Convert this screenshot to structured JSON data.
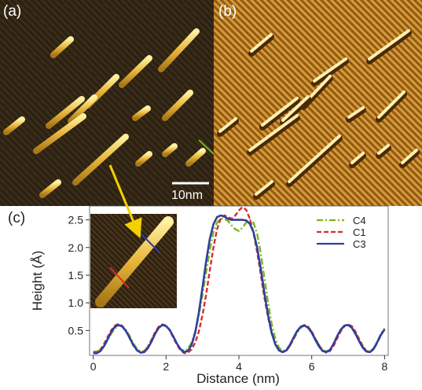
{
  "panels": {
    "a": {
      "label": "(a)",
      "scale_bar_label": "10nm"
    },
    "b": {
      "label": "(b)"
    },
    "c": {
      "label": "(c)"
    }
  },
  "colors": {
    "panel_a_bg": "#2a2012",
    "panel_a_stripe": "#3a2c18",
    "panel_a_wire": "#e8b53a",
    "panel_a_wire_glow": "#fff1a0",
    "panel_b_bg": "#b87a22",
    "panel_b_stripe_dark": "#8a5512",
    "panel_b_stripe_light": "#d9a040",
    "panel_b_wire_dark": "#4a2a08",
    "panel_b_wire_light": "#fff0b0",
    "arrow": "#f5d000",
    "c4": "#7ab51d",
    "c1": "#d62d2d",
    "c3": "#2e3fa0",
    "axis": "#333333"
  },
  "chart_data": {
    "type": "line",
    "xlabel": "Distance (nm)",
    "ylabel": "Height (Å)",
    "xlim": [
      -0.1,
      8.1
    ],
    "ylim": [
      0.05,
      2.75
    ],
    "xticks": [
      "0",
      "2",
      "4",
      "6",
      "8"
    ],
    "yticks": [
      "0.5",
      "1.0",
      "1.5",
      "2.0",
      "2.5"
    ],
    "legend_position": "top-right",
    "series": [
      {
        "name": "C4",
        "style": "dash-dot",
        "x": [
          0.0,
          0.1,
          0.2,
          0.3,
          0.4,
          0.5,
          0.6,
          0.7,
          0.8,
          0.9,
          1.0,
          1.1,
          1.2,
          1.3,
          1.4,
          1.5,
          1.6,
          1.7,
          1.8,
          1.9,
          2.0,
          2.1,
          2.2,
          2.3,
          2.4,
          2.5,
          2.6,
          2.7,
          2.8,
          2.9,
          3.0,
          3.1,
          3.2,
          3.3,
          3.4,
          3.5,
          3.6,
          3.7,
          3.8,
          3.9,
          4.0,
          4.1,
          4.2,
          4.3,
          4.4,
          4.5,
          4.6,
          4.7,
          4.8,
          4.9,
          5.0,
          5.1,
          5.2,
          5.3,
          5.4,
          5.5,
          5.6,
          5.7,
          5.8,
          5.9,
          6.0,
          6.1,
          6.2,
          6.3,
          6.4,
          6.5,
          6.6,
          6.7,
          6.8,
          6.9,
          7.0,
          7.1,
          7.2,
          7.3,
          7.4,
          7.5,
          7.6,
          7.7,
          7.8,
          7.9,
          8.0
        ],
        "y": [
          0.12,
          0.12,
          0.15,
          0.22,
          0.33,
          0.45,
          0.54,
          0.59,
          0.58,
          0.51,
          0.4,
          0.27,
          0.17,
          0.12,
          0.13,
          0.21,
          0.33,
          0.46,
          0.56,
          0.6,
          0.58,
          0.51,
          0.39,
          0.26,
          0.16,
          0.13,
          0.17,
          0.28,
          0.48,
          0.78,
          1.15,
          1.55,
          1.95,
          2.28,
          2.45,
          2.52,
          2.52,
          2.48,
          2.4,
          2.33,
          2.3,
          2.36,
          2.45,
          2.5,
          2.45,
          2.25,
          1.9,
          1.45,
          1.0,
          0.62,
          0.35,
          0.19,
          0.13,
          0.14,
          0.22,
          0.34,
          0.46,
          0.55,
          0.59,
          0.56,
          0.48,
          0.36,
          0.24,
          0.15,
          0.12,
          0.15,
          0.25,
          0.38,
          0.5,
          0.58,
          0.6,
          0.56,
          0.46,
          0.33,
          0.21,
          0.14,
          0.12,
          0.18,
          0.3,
          0.44,
          0.54
        ]
      },
      {
        "name": "C1",
        "style": "dashed",
        "x": [
          0.0,
          0.1,
          0.2,
          0.3,
          0.4,
          0.5,
          0.6,
          0.7,
          0.8,
          0.9,
          1.0,
          1.1,
          1.2,
          1.3,
          1.4,
          1.5,
          1.6,
          1.7,
          1.8,
          1.9,
          2.0,
          2.1,
          2.2,
          2.3,
          2.4,
          2.5,
          2.6,
          2.7,
          2.8,
          2.9,
          3.0,
          3.1,
          3.2,
          3.3,
          3.4,
          3.5,
          3.6,
          3.7,
          3.8,
          3.9,
          4.0,
          4.1,
          4.2,
          4.3,
          4.4,
          4.5,
          4.6,
          4.7,
          4.8,
          4.9,
          5.0,
          5.1,
          5.2,
          5.3,
          5.4,
          5.5,
          5.6,
          5.7,
          5.8,
          5.9,
          6.0,
          6.1,
          6.2,
          6.3,
          6.4,
          6.5,
          6.6,
          6.7,
          6.8,
          6.9,
          7.0,
          7.1,
          7.2,
          7.3,
          7.4,
          7.5,
          7.6,
          7.7,
          7.8,
          7.9,
          8.0
        ],
        "y": [
          0.1,
          0.11,
          0.16,
          0.26,
          0.39,
          0.51,
          0.59,
          0.62,
          0.58,
          0.49,
          0.36,
          0.23,
          0.14,
          0.1,
          0.12,
          0.2,
          0.33,
          0.47,
          0.57,
          0.61,
          0.59,
          0.5,
          0.37,
          0.24,
          0.14,
          0.09,
          0.1,
          0.16,
          0.28,
          0.48,
          0.78,
          1.15,
          1.58,
          2.0,
          2.33,
          2.52,
          2.58,
          2.55,
          2.52,
          2.58,
          2.67,
          2.73,
          2.68,
          2.52,
          2.27,
          1.92,
          1.52,
          1.1,
          0.74,
          0.45,
          0.26,
          0.15,
          0.11,
          0.13,
          0.22,
          0.35,
          0.48,
          0.57,
          0.6,
          0.57,
          0.48,
          0.35,
          0.23,
          0.14,
          0.1,
          0.13,
          0.22,
          0.36,
          0.49,
          0.58,
          0.61,
          0.58,
          0.48,
          0.35,
          0.22,
          0.13,
          0.11,
          0.16,
          0.28,
          0.42,
          0.53
        ]
      },
      {
        "name": "C3",
        "style": "solid",
        "x": [
          0.0,
          0.1,
          0.2,
          0.3,
          0.4,
          0.5,
          0.6,
          0.7,
          0.8,
          0.9,
          1.0,
          1.1,
          1.2,
          1.3,
          1.4,
          1.5,
          1.6,
          1.7,
          1.8,
          1.9,
          2.0,
          2.1,
          2.2,
          2.3,
          2.4,
          2.5,
          2.6,
          2.7,
          2.8,
          2.9,
          3.0,
          3.1,
          3.2,
          3.3,
          3.4,
          3.5,
          3.6,
          3.7,
          3.8,
          3.9,
          4.0,
          4.1,
          4.2,
          4.3,
          4.4,
          4.5,
          4.6,
          4.7,
          4.8,
          4.9,
          5.0,
          5.1,
          5.2,
          5.3,
          5.4,
          5.5,
          5.6,
          5.7,
          5.8,
          5.9,
          6.0,
          6.1,
          6.2,
          6.3,
          6.4,
          6.5,
          6.6,
          6.7,
          6.8,
          6.9,
          7.0,
          7.1,
          7.2,
          7.3,
          7.4,
          7.5,
          7.6,
          7.7,
          7.8,
          7.9,
          8.0
        ],
        "y": [
          0.09,
          0.09,
          0.13,
          0.22,
          0.35,
          0.48,
          0.57,
          0.6,
          0.57,
          0.49,
          0.37,
          0.24,
          0.15,
          0.1,
          0.11,
          0.18,
          0.3,
          0.44,
          0.55,
          0.6,
          0.58,
          0.51,
          0.39,
          0.26,
          0.16,
          0.11,
          0.13,
          0.24,
          0.46,
          0.82,
          1.28,
          1.75,
          2.15,
          2.42,
          2.55,
          2.58,
          2.56,
          2.52,
          2.5,
          2.5,
          2.5,
          2.5,
          2.49,
          2.43,
          2.28,
          2.0,
          1.62,
          1.18,
          0.78,
          0.46,
          0.25,
          0.14,
          0.11,
          0.14,
          0.24,
          0.37,
          0.49,
          0.57,
          0.59,
          0.55,
          0.46,
          0.33,
          0.21,
          0.13,
          0.11,
          0.15,
          0.26,
          0.4,
          0.52,
          0.59,
          0.6,
          0.55,
          0.44,
          0.31,
          0.19,
          0.12,
          0.11,
          0.17,
          0.29,
          0.42,
          0.52
        ]
      }
    ]
  }
}
